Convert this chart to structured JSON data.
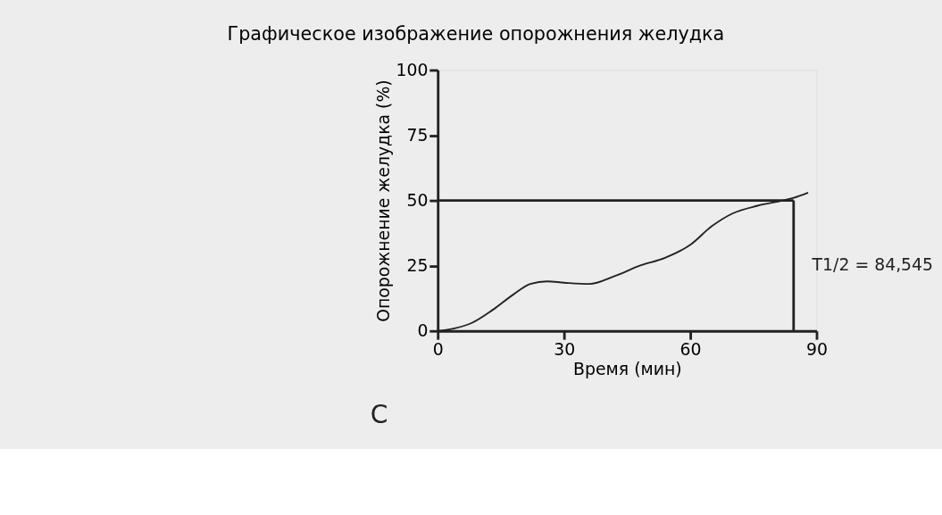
{
  "chart_data": {
    "type": "line",
    "title": "Графическое изображение опорожнения желудка",
    "xlabel": "Время (мин)",
    "ylabel": "Опорожнение желудка (%)",
    "x": [
      0,
      4,
      8,
      13,
      18,
      22,
      26,
      30,
      36,
      42,
      48,
      54,
      60,
      65,
      70,
      76,
      82,
      84.545,
      88
    ],
    "series": [
      {
        "color": "#222222",
        "values": [
          0,
          1,
          3,
          8,
          14,
          18,
          19,
          18.5,
          18,
          21,
          25,
          28,
          33,
          40,
          45,
          48,
          50,
          51,
          53
        ]
      }
    ],
    "xlim": [
      0,
      90
    ],
    "ylim": [
      0,
      100
    ],
    "xticks": [
      0,
      30,
      60,
      90
    ],
    "yticks": [
      0,
      25,
      50,
      75,
      100
    ],
    "grid": false,
    "marker": "none",
    "line_style": "solid",
    "ref_lines": [
      {
        "axis": "y",
        "value": 50,
        "label": null
      },
      {
        "axis": "x",
        "value": 84.545,
        "label": "T1/2 = 84,545"
      }
    ],
    "annotations": [
      "C"
    ]
  }
}
